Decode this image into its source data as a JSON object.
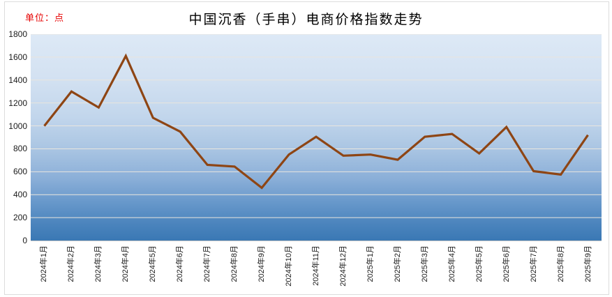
{
  "chart_data": {
    "type": "line",
    "title": "中国沉香（手串）电商价格指数走势",
    "unit_label": "单位：点",
    "categories": [
      "2024年1月",
      "2024年2月",
      "2024年3月",
      "2024年4月",
      "2024年5月",
      "2024年6月",
      "2024年7月",
      "2024年8月",
      "2024年9月",
      "2024年10月",
      "2024年11月",
      "2024年12月",
      "2025年1月",
      "2025年2月",
      "2025年3月",
      "2025年4月",
      "2025年5月",
      "2025年6月",
      "2025年7月",
      "2025年8月",
      "2025年9月"
    ],
    "values": [
      1000,
      1300,
      1160,
      1610,
      1070,
      950,
      660,
      645,
      460,
      750,
      905,
      740,
      750,
      705,
      905,
      930,
      760,
      990,
      605,
      575,
      920
    ],
    "ylim": [
      0,
      1800
    ],
    "ytick_step": 200,
    "yticks": [
      0,
      200,
      400,
      600,
      800,
      1000,
      1200,
      1400,
      1600,
      1800
    ],
    "xlabel": "",
    "ylabel": "",
    "legend": "none",
    "grid": "horizontal",
    "colors": {
      "line": "#8e4514",
      "unit_label": "#e60000",
      "title": "#000000",
      "axis_text": "#1a1a1a",
      "gridline": "#e9e5de",
      "plot_gradient": [
        [
          "0%",
          "#dde9f6"
        ],
        [
          "20%",
          "#d4e2f2"
        ],
        [
          "40%",
          "#c2d6ec"
        ],
        [
          "55%",
          "#abc6e3"
        ],
        [
          "70%",
          "#8bafd8"
        ],
        [
          "82%",
          "#6697ca"
        ],
        [
          "92%",
          "#4b84bd"
        ],
        [
          "100%",
          "#3a78b4"
        ]
      ]
    }
  }
}
